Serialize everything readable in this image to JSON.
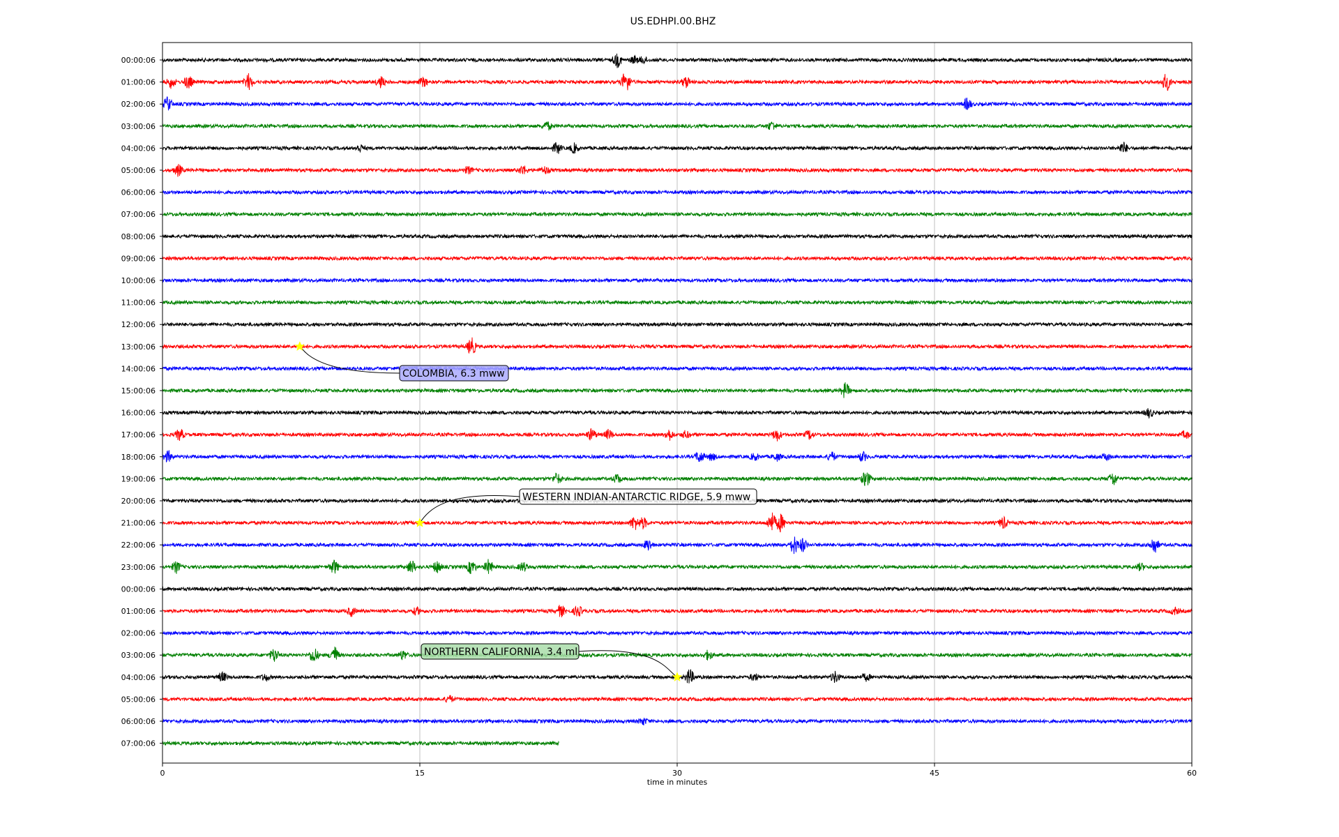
{
  "chart_data": {
    "type": "line",
    "title": "US.EDHPI.00.BHZ",
    "xlabel": "time in minutes",
    "ylabel": "",
    "xlim": [
      0,
      60
    ],
    "xticks": [
      0,
      15,
      30,
      45,
      60
    ],
    "grid": "vertical at x ticks",
    "color_cycle": [
      "#000000",
      "#ff0000",
      "#0000ff",
      "#008000"
    ],
    "rows": [
      {
        "label": "00:00:06",
        "end": 60,
        "events": [
          [
            26.5,
            6
          ],
          [
            27.5,
            3
          ],
          [
            28.0,
            3
          ]
        ]
      },
      {
        "label": "01:00:06",
        "end": 60,
        "events": [
          [
            0.5,
            5
          ],
          [
            1.5,
            6
          ],
          [
            5.0,
            7
          ],
          [
            12.7,
            5
          ],
          [
            15.2,
            4
          ],
          [
            27.0,
            10
          ],
          [
            30.5,
            5
          ],
          [
            58.5,
            8
          ]
        ]
      },
      {
        "label": "02:00:06",
        "end": 60,
        "events": [
          [
            0.3,
            6
          ],
          [
            46.9,
            5
          ]
        ]
      },
      {
        "label": "03:00:06",
        "end": 60,
        "events": [
          [
            22.4,
            4
          ],
          [
            35.5,
            4
          ]
        ]
      },
      {
        "label": "04:00:06",
        "end": 60,
        "events": [
          [
            11.5,
            3
          ],
          [
            23.0,
            5
          ],
          [
            24.0,
            4
          ],
          [
            56.0,
            5
          ]
        ]
      },
      {
        "label": "05:00:06",
        "end": 60,
        "events": [
          [
            0.9,
            5
          ],
          [
            17.8,
            3
          ],
          [
            21.0,
            4
          ],
          [
            22.3,
            3
          ]
        ]
      },
      {
        "label": "06:00:06",
        "end": 60,
        "events": []
      },
      {
        "label": "07:00:06",
        "end": 60,
        "events": []
      },
      {
        "label": "08:00:06",
        "end": 60,
        "events": []
      },
      {
        "label": "09:00:06",
        "end": 60,
        "events": []
      },
      {
        "label": "10:00:06",
        "end": 60,
        "events": []
      },
      {
        "label": "11:00:06",
        "end": 60,
        "events": []
      },
      {
        "label": "12:00:06",
        "end": 60,
        "events": []
      },
      {
        "label": "13:00:06",
        "end": 60,
        "events": [
          [
            18.0,
            8
          ]
        ]
      },
      {
        "label": "14:00:06",
        "end": 60,
        "events": []
      },
      {
        "label": "15:00:06",
        "end": 60,
        "events": [
          [
            39.8,
            7
          ]
        ]
      },
      {
        "label": "16:00:06",
        "end": 60,
        "events": [
          [
            57.5,
            4
          ]
        ]
      },
      {
        "label": "17:00:06",
        "end": 60,
        "events": [
          [
            1.0,
            5
          ],
          [
            25.0,
            5
          ],
          [
            26.0,
            4
          ],
          [
            29.5,
            5
          ],
          [
            30.5,
            3
          ],
          [
            35.8,
            5
          ],
          [
            37.7,
            4
          ],
          [
            59.6,
            3
          ]
        ]
      },
      {
        "label": "18:00:06",
        "end": 60,
        "events": [
          [
            0.3,
            5
          ],
          [
            31.3,
            5
          ],
          [
            32.0,
            3
          ],
          [
            34.5,
            3
          ],
          [
            35.8,
            3
          ],
          [
            39.0,
            4
          ],
          [
            40.8,
            4
          ],
          [
            55.0,
            3
          ]
        ]
      },
      {
        "label": "19:00:06",
        "end": 60,
        "events": [
          [
            23.0,
            5
          ],
          [
            26.5,
            4
          ],
          [
            41.0,
            7
          ],
          [
            55.4,
            6
          ]
        ]
      },
      {
        "label": "20:00:06",
        "end": 60,
        "events": []
      },
      {
        "label": "21:00:06",
        "end": 60,
        "events": [
          [
            27.5,
            6
          ],
          [
            28.0,
            5
          ],
          [
            35.5,
            9
          ],
          [
            36.0,
            8
          ],
          [
            49.0,
            5
          ]
        ]
      },
      {
        "label": "22:00:06",
        "end": 60,
        "events": [
          [
            28.3,
            5
          ],
          [
            36.8,
            8
          ],
          [
            37.3,
            6
          ],
          [
            57.8,
            8
          ]
        ]
      },
      {
        "label": "23:00:06",
        "end": 60,
        "events": [
          [
            0.8,
            5
          ],
          [
            10.0,
            6
          ],
          [
            14.5,
            6
          ],
          [
            16.0,
            5
          ],
          [
            18.0,
            6
          ],
          [
            19.0,
            6
          ],
          [
            21.0,
            4
          ],
          [
            57.0,
            3
          ]
        ]
      },
      {
        "label": "00:00:06",
        "end": 60,
        "events": []
      },
      {
        "label": "01:00:06",
        "end": 60,
        "events": [
          [
            11.0,
            4
          ],
          [
            14.8,
            3
          ],
          [
            23.2,
            5
          ],
          [
            24.2,
            5
          ],
          [
            59.0,
            3
          ]
        ]
      },
      {
        "label": "02:00:06",
        "end": 60,
        "events": []
      },
      {
        "label": "03:00:06",
        "end": 60,
        "events": [
          [
            6.5,
            6
          ],
          [
            8.8,
            7
          ],
          [
            10.0,
            8
          ],
          [
            14.0,
            4
          ],
          [
            31.8,
            4
          ]
        ]
      },
      {
        "label": "04:00:06",
        "end": 60,
        "events": [
          [
            3.5,
            4
          ],
          [
            6.0,
            3
          ],
          [
            30.7,
            7
          ],
          [
            34.5,
            3
          ],
          [
            39.2,
            5
          ],
          [
            41.0,
            3
          ]
        ]
      },
      {
        "label": "05:00:06",
        "end": 60,
        "events": [
          [
            16.7,
            3
          ]
        ]
      },
      {
        "label": "06:00:06",
        "end": 60,
        "events": [
          [
            28.0,
            3
          ]
        ]
      },
      {
        "label": "07:00:06",
        "end": 23.1,
        "events": []
      }
    ],
    "annotations": [
      {
        "text": "COLOMBIA, 6.3 mww",
        "row": 13,
        "x": 8.0,
        "box_color": "#aaaaff"
      },
      {
        "text": "WESTERN INDIAN-ANTARCTIC RIDGE, 5.9 mww",
        "row": 21,
        "x": 15.0,
        "box_color": "#ffffff"
      },
      {
        "text": "NORTHERN CALIFORNIA, 3.4 ml",
        "row": 28,
        "x": 30.0,
        "box_color": "#aaddaa"
      }
    ],
    "marker_color": "#ffff00"
  }
}
